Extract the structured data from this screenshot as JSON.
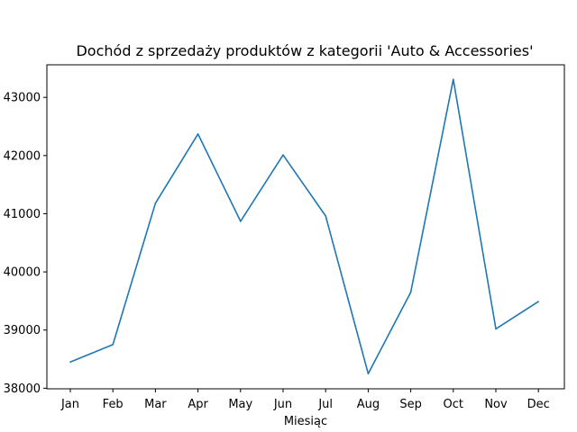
{
  "chart_data": {
    "type": "line",
    "title": "Dochód z sprzedaży produktów z kategorii 'Auto & Accessories'",
    "xlabel": "Miesiąc",
    "ylabel": "",
    "categories": [
      "Jan",
      "Feb",
      "Mar",
      "Apr",
      "May",
      "Jun",
      "Jul",
      "Aug",
      "Sep",
      "Oct",
      "Nov",
      "Dec"
    ],
    "series": [
      {
        "values": [
          38450,
          38750,
          41180,
          42370,
          40870,
          42010,
          40960,
          38250,
          39650,
          43310,
          39020,
          39490
        ],
        "color": "#1f77b4"
      }
    ],
    "yticks": [
      38000,
      39000,
      40000,
      41000,
      42000,
      43000
    ],
    "ytick_labels": [
      "38000",
      "39000",
      "40000",
      "41000",
      "42000",
      "43000"
    ],
    "ylim": [
      37990,
      43560
    ],
    "grid": false,
    "legend": false
  }
}
